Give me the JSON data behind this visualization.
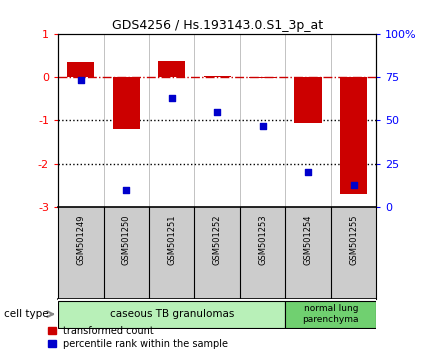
{
  "title": "GDS4256 / Hs.193143.0.S1_3p_at",
  "samples": [
    "GSM501249",
    "GSM501250",
    "GSM501251",
    "GSM501252",
    "GSM501253",
    "GSM501254",
    "GSM501255"
  ],
  "bar_values": [
    0.35,
    -1.2,
    0.38,
    0.02,
    -0.02,
    -1.05,
    -2.7
  ],
  "dot_values": [
    73,
    10,
    63,
    55,
    47,
    20,
    13
  ],
  "ylim_left": [
    -3,
    1
  ],
  "ylim_right": [
    0,
    100
  ],
  "yticks_left": [
    1,
    0,
    -1,
    -2,
    -3
  ],
  "yticks_right": [
    0,
    25,
    50,
    75,
    100
  ],
  "yticklabels_right": [
    "0",
    "25",
    "50",
    "75",
    "100%"
  ],
  "hlines_dotted": [
    -1,
    -2
  ],
  "hline_dashdot": 0,
  "bar_color": "#cc0000",
  "dot_color": "#0000cc",
  "dash_color": "#cc0000",
  "cell_groups": [
    {
      "label": "caseous TB granulomas",
      "n_samples": 5,
      "color": "#b8f0b8"
    },
    {
      "label": "normal lung\nparenchyma",
      "n_samples": 2,
      "color": "#70d070"
    }
  ],
  "legend_items": [
    {
      "label": "transformed count",
      "color": "#cc0000"
    },
    {
      "label": "percentile rank within the sample",
      "color": "#0000cc"
    }
  ],
  "cell_type_label": "cell type",
  "background_color": "#ffffff",
  "plot_bg": "#ffffff",
  "tick_area_bg": "#cccccc"
}
